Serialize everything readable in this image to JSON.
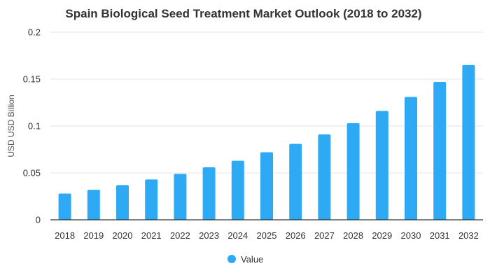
{
  "chart_data": {
    "type": "bar",
    "title": "Spain Biological Seed Treatment Market Outlook (2018 to 2032)",
    "xlabel": "",
    "ylabel": "USD USD Billion",
    "categories": [
      "2018",
      "2019",
      "2020",
      "2021",
      "2022",
      "2023",
      "2024",
      "2025",
      "2026",
      "2027",
      "2028",
      "2029",
      "2030",
      "2031",
      "2032"
    ],
    "series": [
      {
        "name": "Value",
        "values": [
          0.028,
          0.032,
          0.037,
          0.043,
          0.049,
          0.056,
          0.063,
          0.072,
          0.081,
          0.091,
          0.103,
          0.116,
          0.131,
          0.147,
          0.165
        ]
      }
    ],
    "ylim": [
      0,
      0.2
    ],
    "yticks": [
      0,
      0.05,
      0.1,
      0.15,
      0.2
    ],
    "ytick_labels": [
      "0",
      "0.05",
      "0.1",
      "0.15",
      "0.2"
    ],
    "grid": true,
    "legend_position": "bottom",
    "colors": {
      "bar": "#2eaaf5",
      "grid": "#e6e6e6",
      "axis": "#333333"
    }
  }
}
